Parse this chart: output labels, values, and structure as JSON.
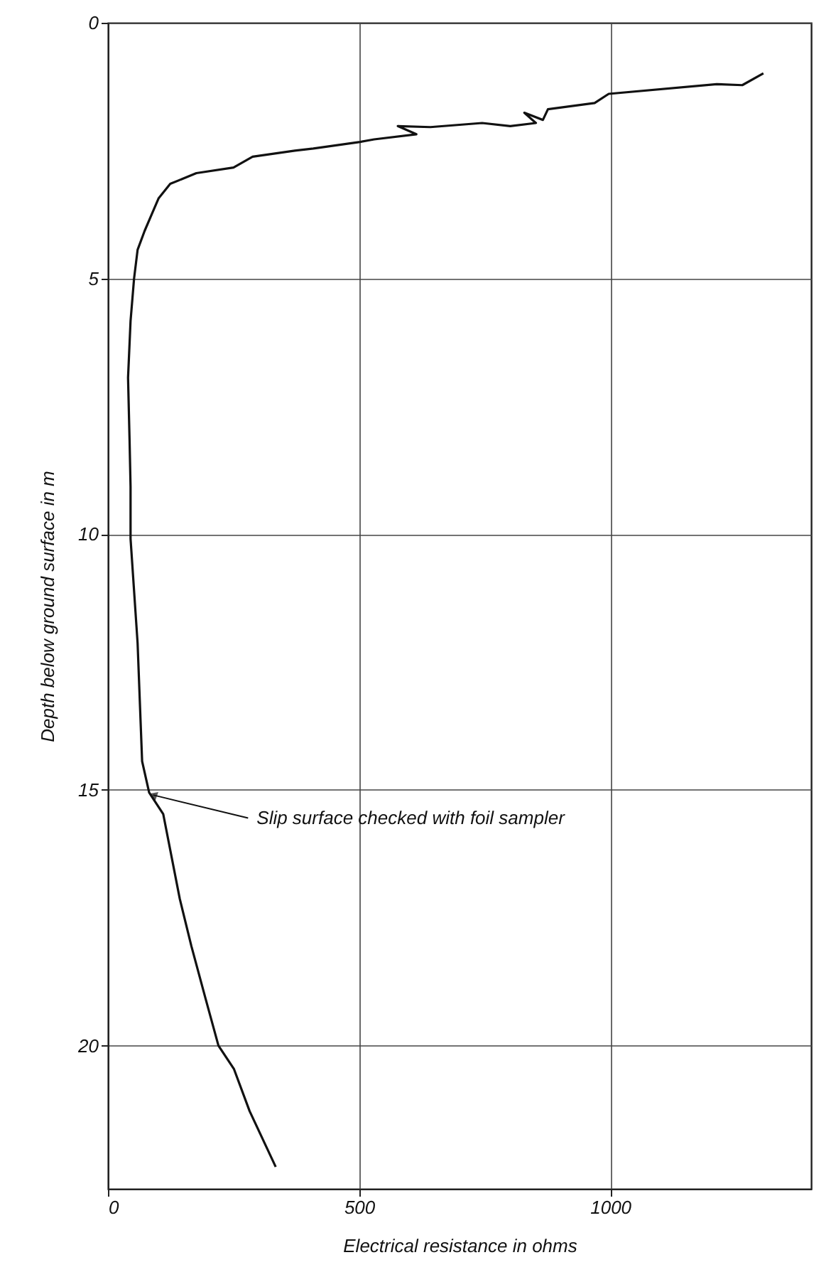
{
  "chart_data": {
    "type": "line",
    "xlabel": "Electrical resistance in ohms",
    "ylabel": "Depth below ground surface in m",
    "x": [
      1305,
      1263,
      1212,
      997,
      969,
      876,
      866,
      829,
      852,
      801,
      745,
      642,
      577,
      614,
      530,
      502,
      409,
      372,
      288,
      250,
      176,
      124,
      101,
      87,
      73,
      59,
      52,
      45,
      40,
      43,
      45,
      45,
      59,
      68,
      82,
      110,
      143,
      166,
      194,
      220,
      251,
      282,
      334
    ],
    "series": [
      {
        "color": "#111111",
        "values": [
          0.99,
          1.22,
          1.2,
          1.39,
          1.57,
          1.69,
          1.9,
          1.76,
          1.96,
          2.02,
          1.96,
          2.04,
          2.02,
          2.18,
          2.28,
          2.33,
          2.46,
          2.5,
          2.62,
          2.83,
          2.94,
          3.15,
          3.43,
          3.75,
          4.07,
          4.44,
          5.0,
          5.83,
          6.94,
          8.15,
          9.07,
          10.09,
          12.13,
          14.44,
          15.05,
          15.47,
          17.13,
          18.05,
          19.07,
          20.0,
          20.46,
          21.28,
          22.37
        ]
      }
    ],
    "xlim": [
      0,
      1400
    ],
    "ylim": [
      22.8,
      0
    ],
    "xticks": [
      0,
      500,
      1000
    ],
    "yticks": [
      0,
      5,
      10,
      15,
      20
    ],
    "grid": true,
    "marker": "none",
    "line_style": "solid",
    "annotations": [
      {
        "text": "Slip surface checked with foil sampler",
        "x": 90,
        "y": 15.1
      }
    ]
  }
}
